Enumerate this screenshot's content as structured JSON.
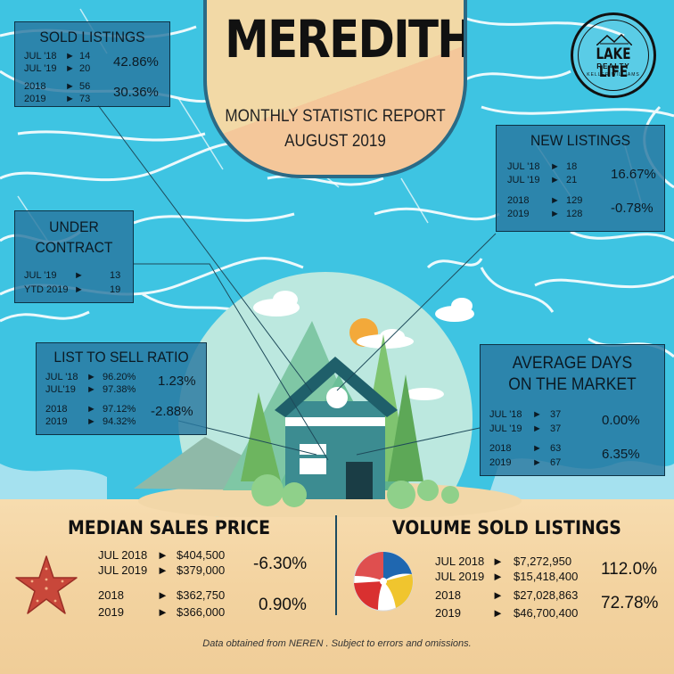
{
  "header": {
    "title": "MEREDITH",
    "subtitle_line1": "MONTHLY STATISTIC REPORT",
    "subtitle_line2": "AUGUST 2019"
  },
  "logo": {
    "name": "LAKE LIFE",
    "sub": "REALTY",
    "tagline": "KELLER WILLIAMS"
  },
  "sold_listings": {
    "title": "SOLD LISTINGS",
    "rows": [
      {
        "label": "JUL '18",
        "arrow": "►",
        "value": "14"
      },
      {
        "label": "JUL '19",
        "arrow": "►",
        "value": "20"
      },
      {
        "label": "2018",
        "arrow": "►",
        "value": "56"
      },
      {
        "label": "2019",
        "arrow": "►",
        "value": "73"
      }
    ],
    "pct_month": "42.86%",
    "pct_year": "30.36%"
  },
  "new_listings": {
    "title": "NEW LISTINGS",
    "rows": [
      {
        "label": "JUL '18",
        "arrow": "►",
        "value": "18"
      },
      {
        "label": "JUL '19",
        "arrow": "►",
        "value": "21"
      },
      {
        "label": "2018",
        "arrow": "►",
        "value": "129"
      },
      {
        "label": "2019",
        "arrow": "►",
        "value": "128"
      }
    ],
    "pct_month": "16.67%",
    "pct_year": "-0.78%"
  },
  "under_contract": {
    "title_line1": "UNDER",
    "title_line2": "CONTRACT",
    "rows": [
      {
        "label": "JUL '19",
        "arrow": "►",
        "value": "13"
      },
      {
        "label": "YTD 2019",
        "arrow": "►",
        "value": "19"
      }
    ]
  },
  "list_to_sell": {
    "title": "LIST TO SELL  RATIO",
    "rows": [
      {
        "label": "JUL '18",
        "arrow": "►",
        "value": "96.20%"
      },
      {
        "label": "JUL'19",
        "arrow": "►",
        "value": "97.38%"
      },
      {
        "label": "2018",
        "arrow": "►",
        "value": "97.12%"
      },
      {
        "label": "2019",
        "arrow": "►",
        "value": "94.32%"
      }
    ],
    "pct_month": "1.23%",
    "pct_year": "-2.88%"
  },
  "avg_days": {
    "title_line1": "AVERAGE DAYS",
    "title_line2": "ON THE MARKET",
    "rows": [
      {
        "label": "JUL '18",
        "arrow": "►",
        "value": "37"
      },
      {
        "label": "JUL '19",
        "arrow": "►",
        "value": "37"
      },
      {
        "label": "2018",
        "arrow": "►",
        "value": "63"
      },
      {
        "label": "2019",
        "arrow": "►",
        "value": "67"
      }
    ],
    "pct_month": "0.00%",
    "pct_year": "6.35%"
  },
  "median_price": {
    "title": "MEDIAN SALES PRICE",
    "rows": [
      {
        "label": "JUL 2018",
        "arrow": "►",
        "value": "$404,500"
      },
      {
        "label": "JUL 2019",
        "arrow": "►",
        "value": "$379,000"
      },
      {
        "label": "2018",
        "arrow": "►",
        "value": "$362,750"
      },
      {
        "label": "2019",
        "arrow": "►",
        "value": "$366,000"
      }
    ],
    "pct_month": "-6.30%",
    "pct_year": "0.90%"
  },
  "volume_sold": {
    "title": "VOLUME SOLD LISTINGS",
    "rows": [
      {
        "label": "JUL 2018",
        "arrow": "►",
        "value": "$7,272,950"
      },
      {
        "label": "JUL 2019",
        "arrow": "►",
        "value": "$15,418,400"
      },
      {
        "label": "2018",
        "arrow": "►",
        "value": "$27,028,863"
      },
      {
        "label": "2019",
        "arrow": "►",
        "value": "$46,700,400"
      }
    ],
    "pct_month": "112.0%",
    "pct_year": "72.78%"
  },
  "footer": "Data obtained from NEREN . Subject to errors and omissions.",
  "colors": {
    "water": "#3fc3e0",
    "box": "#2878a0",
    "sand": "#f3d3a0",
    "house": "#3c8a8e",
    "tree": "#8fcf8a"
  }
}
